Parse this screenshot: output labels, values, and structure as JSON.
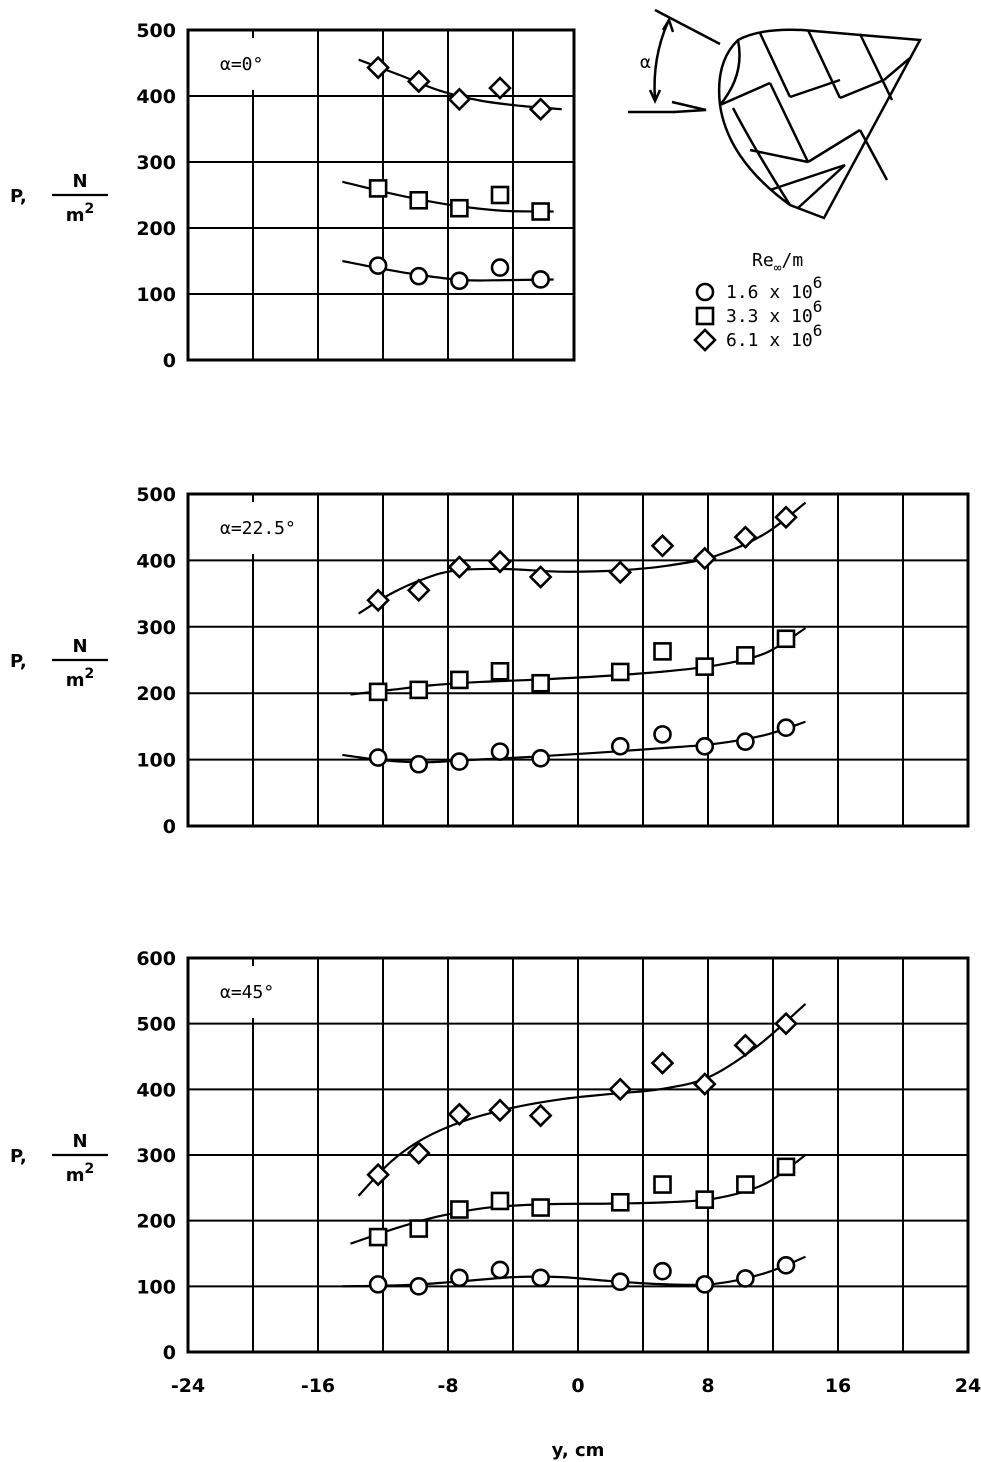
{
  "chart_data": [
    {
      "type": "scatter",
      "annotation": "α=0°",
      "xlim": [
        -24,
        24
      ],
      "ylim": [
        0,
        500
      ],
      "yticks": [
        0,
        100,
        200,
        300,
        400,
        500
      ],
      "ylabel": "P,",
      "yunit_num": "N",
      "yunit_den": "m",
      "yunit_exp": "2",
      "series": [
        {
          "marker": "circle",
          "x": [
            -12.3,
            -9.8,
            -7.3,
            -4.8,
            -2.3
          ],
          "y": [
            143,
            127,
            120,
            140,
            122
          ],
          "fit": [
            [
              -14.5,
              150
            ],
            [
              -12,
              138
            ],
            [
              -9.5,
              128
            ],
            [
              -7,
              121
            ],
            [
              -4.5,
              121
            ],
            [
              -1.5,
              122
            ]
          ]
        },
        {
          "marker": "square",
          "x": [
            -12.3,
            -9.8,
            -7.3,
            -4.8,
            -2.3
          ],
          "y": [
            260,
            242,
            230,
            250,
            225
          ],
          "fit": [
            [
              -14.5,
              270
            ],
            [
              -12,
              255
            ],
            [
              -9.5,
              242
            ],
            [
              -7,
              232
            ],
            [
              -4.5,
              226
            ],
            [
              -1.5,
              225
            ]
          ]
        },
        {
          "marker": "diamond",
          "x": [
            -12.3,
            -9.8,
            -7.3,
            -4.8,
            -2.3
          ],
          "y": [
            443,
            422,
            395,
            412,
            380
          ],
          "fit": [
            [
              -13.5,
              455
            ],
            [
              -11,
              432
            ],
            [
              -8.5,
              408
            ],
            [
              -6,
              393
            ],
            [
              -3.5,
              385
            ],
            [
              -1,
              380
            ]
          ]
        }
      ]
    },
    {
      "type": "scatter",
      "annotation": "α=22.5°",
      "xlim": [
        -24,
        24
      ],
      "ylim": [
        0,
        500
      ],
      "yticks": [
        0,
        100,
        200,
        300,
        400,
        500
      ],
      "ylabel": "P,",
      "yunit_num": "N",
      "yunit_den": "m",
      "yunit_exp": "2",
      "series": [
        {
          "marker": "circle",
          "x": [
            -12.3,
            -9.8,
            -7.3,
            -4.8,
            -2.3,
            2.6,
            5.2,
            7.8,
            10.3,
            12.8
          ],
          "y": [
            103,
            93,
            97,
            112,
            102,
            120,
            138,
            120,
            127,
            148
          ],
          "fit": [
            [
              -14.5,
              107
            ],
            [
              -12,
              99
            ],
            [
              -9.5,
              96
            ],
            [
              -7,
              99
            ],
            [
              -3,
              104
            ],
            [
              1,
              110
            ],
            [
              5,
              117
            ],
            [
              8.5,
              124
            ],
            [
              11.5,
              137
            ],
            [
              14,
              157
            ]
          ]
        },
        {
          "marker": "square",
          "x": [
            -12.3,
            -9.8,
            -7.3,
            -4.8,
            -2.3,
            2.6,
            5.2,
            7.8,
            10.3,
            12.8
          ],
          "y": [
            202,
            205,
            220,
            233,
            215,
            232,
            263,
            240,
            257,
            282
          ],
          "fit": [
            [
              -14,
              198
            ],
            [
              -11.5,
              205
            ],
            [
              -9,
              212
            ],
            [
              -6,
              217
            ],
            [
              -3,
              220
            ],
            [
              1,
              225
            ],
            [
              5,
              232
            ],
            [
              8.5,
              242
            ],
            [
              11.5,
              260
            ],
            [
              14,
              298
            ]
          ]
        },
        {
          "marker": "diamond",
          "x": [
            -12.3,
            -9.8,
            -7.3,
            -4.8,
            -2.3,
            2.6,
            5.2,
            7.8,
            10.3,
            12.8
          ],
          "y": [
            340,
            355,
            390,
            398,
            375,
            382,
            422,
            403,
            435,
            465
          ],
          "fit": [
            [
              -13.5,
              320
            ],
            [
              -11.5,
              350
            ],
            [
              -9.5,
              372
            ],
            [
              -7.5,
              385
            ],
            [
              -4.5,
              387
            ],
            [
              -1,
              383
            ],
            [
              2.5,
              385
            ],
            [
              5.5,
              392
            ],
            [
              8.5,
              407
            ],
            [
              11.5,
              440
            ],
            [
              14,
              487
            ]
          ]
        }
      ]
    },
    {
      "type": "scatter",
      "annotation": "α=45°",
      "xlim": [
        -24,
        24
      ],
      "ylim": [
        0,
        600
      ],
      "yticks": [
        0,
        100,
        200,
        300,
        400,
        500,
        600
      ],
      "xticks": [
        -24,
        -16,
        -8,
        0,
        8,
        16,
        24
      ],
      "xlabel": "y, cm",
      "ylabel": "P,",
      "yunit_num": "N",
      "yunit_den": "m",
      "yunit_exp": "2",
      "series": [
        {
          "marker": "circle",
          "x": [
            -12.3,
            -9.8,
            -7.3,
            -4.8,
            -2.3,
            2.6,
            5.2,
            7.8,
            10.3,
            12.8
          ],
          "y": [
            103,
            100,
            113,
            125,
            113,
            107,
            123,
            103,
            112,
            132
          ],
          "fit": [
            [
              -14.5,
              100
            ],
            [
              -10.5,
              102
            ],
            [
              -7,
              108
            ],
            [
              -4,
              114
            ],
            [
              -1,
              114
            ],
            [
              2,
              108
            ],
            [
              5.5,
              103
            ],
            [
              8.5,
              104
            ],
            [
              11.5,
              120
            ],
            [
              14,
              145
            ]
          ]
        },
        {
          "marker": "square",
          "x": [
            -12.3,
            -9.8,
            -7.3,
            -4.8,
            -2.3,
            2.6,
            5.2,
            7.8,
            10.3,
            12.8
          ],
          "y": [
            175,
            188,
            217,
            230,
            220,
            228,
            255,
            232,
            255,
            282
          ],
          "fit": [
            [
              -14,
              165
            ],
            [
              -11,
              190
            ],
            [
              -8.5,
              207
            ],
            [
              -5.5,
              220
            ],
            [
              -2,
              225
            ],
            [
              2,
              226
            ],
            [
              5.5,
              228
            ],
            [
              8.5,
              234
            ],
            [
              11.5,
              256
            ],
            [
              14,
              300
            ]
          ]
        },
        {
          "marker": "diamond",
          "x": [
            -12.3,
            -9.8,
            -7.3,
            -4.8,
            -2.3,
            2.6,
            5.2,
            7.8,
            10.3,
            12.8
          ],
          "y": [
            270,
            303,
            362,
            368,
            360,
            400,
            440,
            408,
            467,
            500
          ],
          "fit": [
            [
              -13.5,
              238
            ],
            [
              -11.5,
              290
            ],
            [
              -9.5,
              325
            ],
            [
              -7,
              352
            ],
            [
              -4,
              372
            ],
            [
              -1,
              385
            ],
            [
              2,
              393
            ],
            [
              5,
              400
            ],
            [
              8,
              418
            ],
            [
              11,
              465
            ],
            [
              14,
              530
            ]
          ]
        }
      ]
    }
  ],
  "legend": {
    "title_main": "Re",
    "title_sub": "∞",
    "title_tail": "/m",
    "items": [
      {
        "marker": "circle",
        "mantissa": "1.6 x 10",
        "exponent": "6"
      },
      {
        "marker": "square",
        "mantissa": "3.3 x 10",
        "exponent": "6"
      },
      {
        "marker": "diamond",
        "mantissa": "6.1 x 10",
        "exponent": "6"
      }
    ]
  },
  "sketch": {
    "angle_label": "α"
  }
}
